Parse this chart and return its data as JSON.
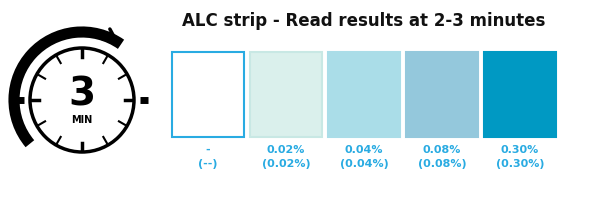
{
  "title": "ALC strip - Read results at 2-3 minutes",
  "title_fontsize": 12,
  "title_color": "#111111",
  "title_fontweight": "bold",
  "box_colors": [
    "#ffffff",
    "#daf0ec",
    "#aadde8",
    "#94c8dc",
    "#0099c3"
  ],
  "box_edge_colors": [
    "#29abe2",
    "#c8e8e4",
    "#aadde8",
    "#94c8dc",
    "#0099c3"
  ],
  "labels_line1": [
    "-",
    "0.02%",
    "0.04%",
    "0.08%",
    "0.30%"
  ],
  "labels_line2": [
    "(--)",
    "(0.02%)",
    "(0.04%)",
    "(0.08%)",
    "(0.30%)"
  ],
  "label_color": "#29abe2",
  "label_fontsize": 8,
  "background_color": "#ffffff"
}
